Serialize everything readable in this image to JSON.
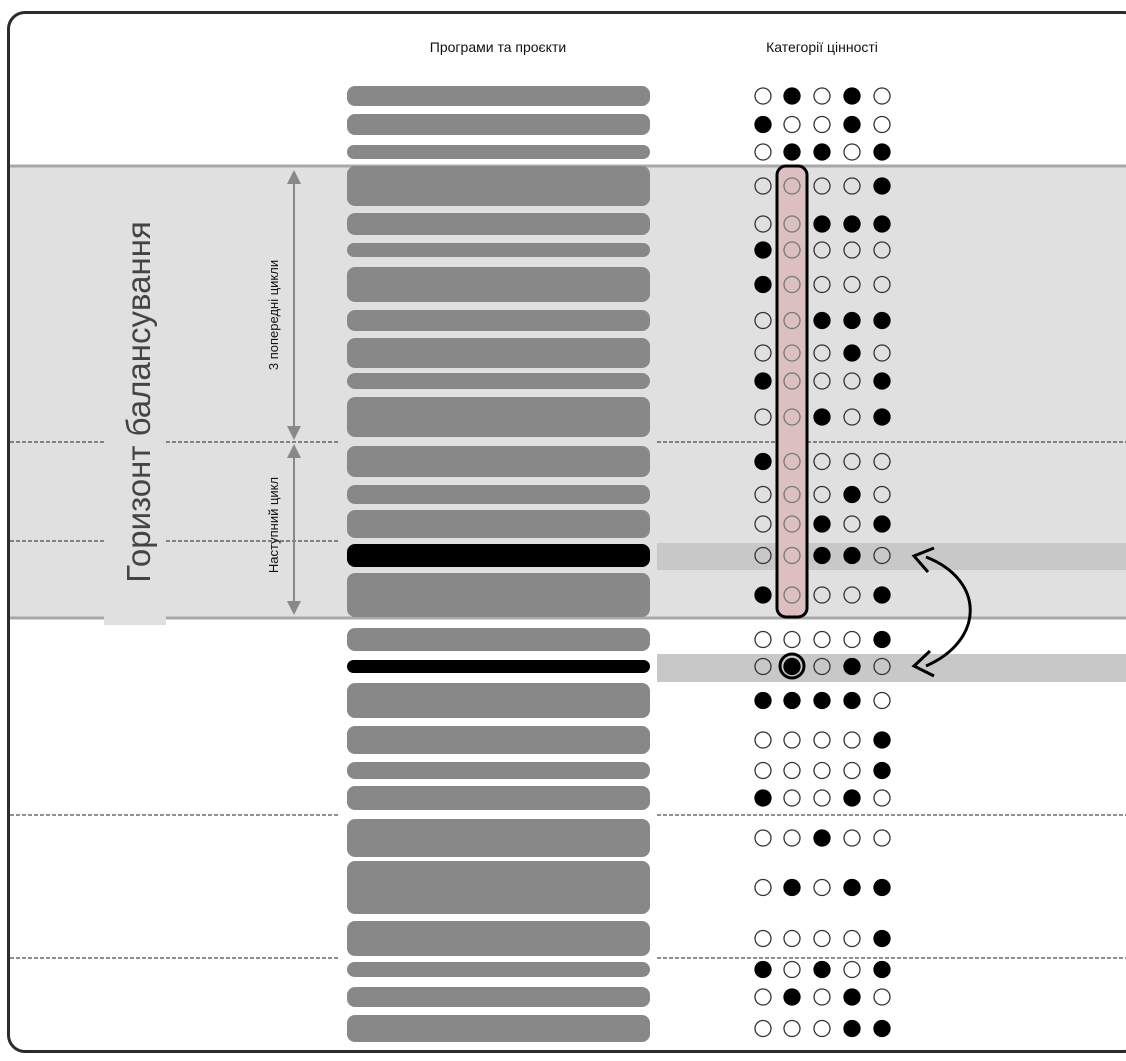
{
  "columns": {
    "programs_title": "Програми та проєкти",
    "value_title": "Категорії цінності"
  },
  "labels": {
    "horizon": "Горизонт балансування",
    "previous_cycles": "3 попередні цикли",
    "next_cycle": "Наступний цикл"
  },
  "colors": {
    "frame": "#2b2b2b",
    "band_bg": "#e0e0e0",
    "band_border": "#a8a8a8",
    "row_highlight": "#c8c8c8",
    "bar": "#888888",
    "bar_highlight": "#000000",
    "column_highlight_fill": "#dcc0c0"
  },
  "highlight_column": 2,
  "rows": [
    {
      "dots": [
        0,
        1,
        0,
        1,
        0
      ],
      "thickness": "medium",
      "highlight": false
    },
    {
      "dots": [
        1,
        0,
        0,
        1,
        0
      ],
      "thickness": "medium",
      "highlight": false
    },
    {
      "dots": [
        0,
        1,
        1,
        0,
        1
      ],
      "thickness": "thin",
      "highlight": false
    },
    {
      "dots": [
        0,
        0,
        0,
        0,
        1
      ],
      "thickness": "thick",
      "highlight": false
    },
    {
      "dots": [
        0,
        0,
        1,
        1,
        1
      ],
      "thickness": "medium",
      "highlight": false
    },
    {
      "dots": [
        1,
        0,
        0,
        0,
        0
      ],
      "thickness": "thin",
      "highlight": false
    },
    {
      "dots": [
        1,
        0,
        0,
        0,
        0
      ],
      "thickness": "thick",
      "highlight": false
    },
    {
      "dots": [
        0,
        0,
        1,
        1,
        1
      ],
      "thickness": "medium",
      "highlight": false
    },
    {
      "dots": [
        0,
        0,
        0,
        1,
        0
      ],
      "thickness": "thick",
      "highlight": false
    },
    {
      "dots": [
        1,
        0,
        0,
        0,
        1
      ],
      "thickness": "thin",
      "highlight": false
    },
    {
      "dots": [
        0,
        0,
        1,
        0,
        1
      ],
      "thickness": "thicker",
      "highlight": false
    },
    {
      "dots": [
        1,
        0,
        0,
        0,
        0
      ],
      "thickness": "thick",
      "highlight": false
    },
    {
      "dots": [
        0,
        0,
        0,
        1,
        0
      ],
      "thickness": "thin",
      "highlight": false
    },
    {
      "dots": [
        0,
        0,
        1,
        0,
        1
      ],
      "thickness": "medium",
      "highlight": false
    },
    {
      "dots": [
        0,
        0,
        1,
        1,
        0
      ],
      "thickness": "medium",
      "highlight": true
    },
    {
      "dots": [
        1,
        0,
        0,
        0,
        1
      ],
      "thickness": "thicker",
      "highlight": false
    },
    {
      "dots": [
        0,
        0,
        0,
        0,
        1
      ],
      "thickness": "medium",
      "highlight": false
    },
    {
      "dots": [
        0,
        1,
        0,
        1,
        0
      ],
      "thickness": "thin",
      "highlight": true
    },
    {
      "dots": [
        1,
        1,
        1,
        1,
        0
      ],
      "thickness": "thicker",
      "highlight": false
    },
    {
      "dots": [
        0,
        0,
        0,
        0,
        1
      ],
      "thickness": "medium",
      "highlight": false
    },
    {
      "dots": [
        0,
        0,
        0,
        0,
        1
      ],
      "thickness": "thin",
      "highlight": false
    },
    {
      "dots": [
        1,
        0,
        0,
        1,
        0
      ],
      "thickness": "medium",
      "highlight": false
    },
    {
      "dots": [
        0,
        0,
        1,
        0,
        0
      ],
      "thickness": "thicker",
      "highlight": false
    },
    {
      "dots": [
        0,
        1,
        0,
        1,
        1
      ],
      "thickness": "huge",
      "highlight": false
    },
    {
      "dots": [
        0,
        0,
        0,
        0,
        1
      ],
      "thickness": "thicker",
      "highlight": false
    },
    {
      "dots": [
        1,
        0,
        1,
        0,
        1
      ],
      "thickness": "thin",
      "highlight": false
    },
    {
      "dots": [
        0,
        1,
        0,
        1,
        0
      ],
      "thickness": "thin",
      "highlight": false
    },
    {
      "dots": [
        0,
        0,
        0,
        1,
        1
      ],
      "thickness": "medium",
      "highlight": false
    }
  ]
}
